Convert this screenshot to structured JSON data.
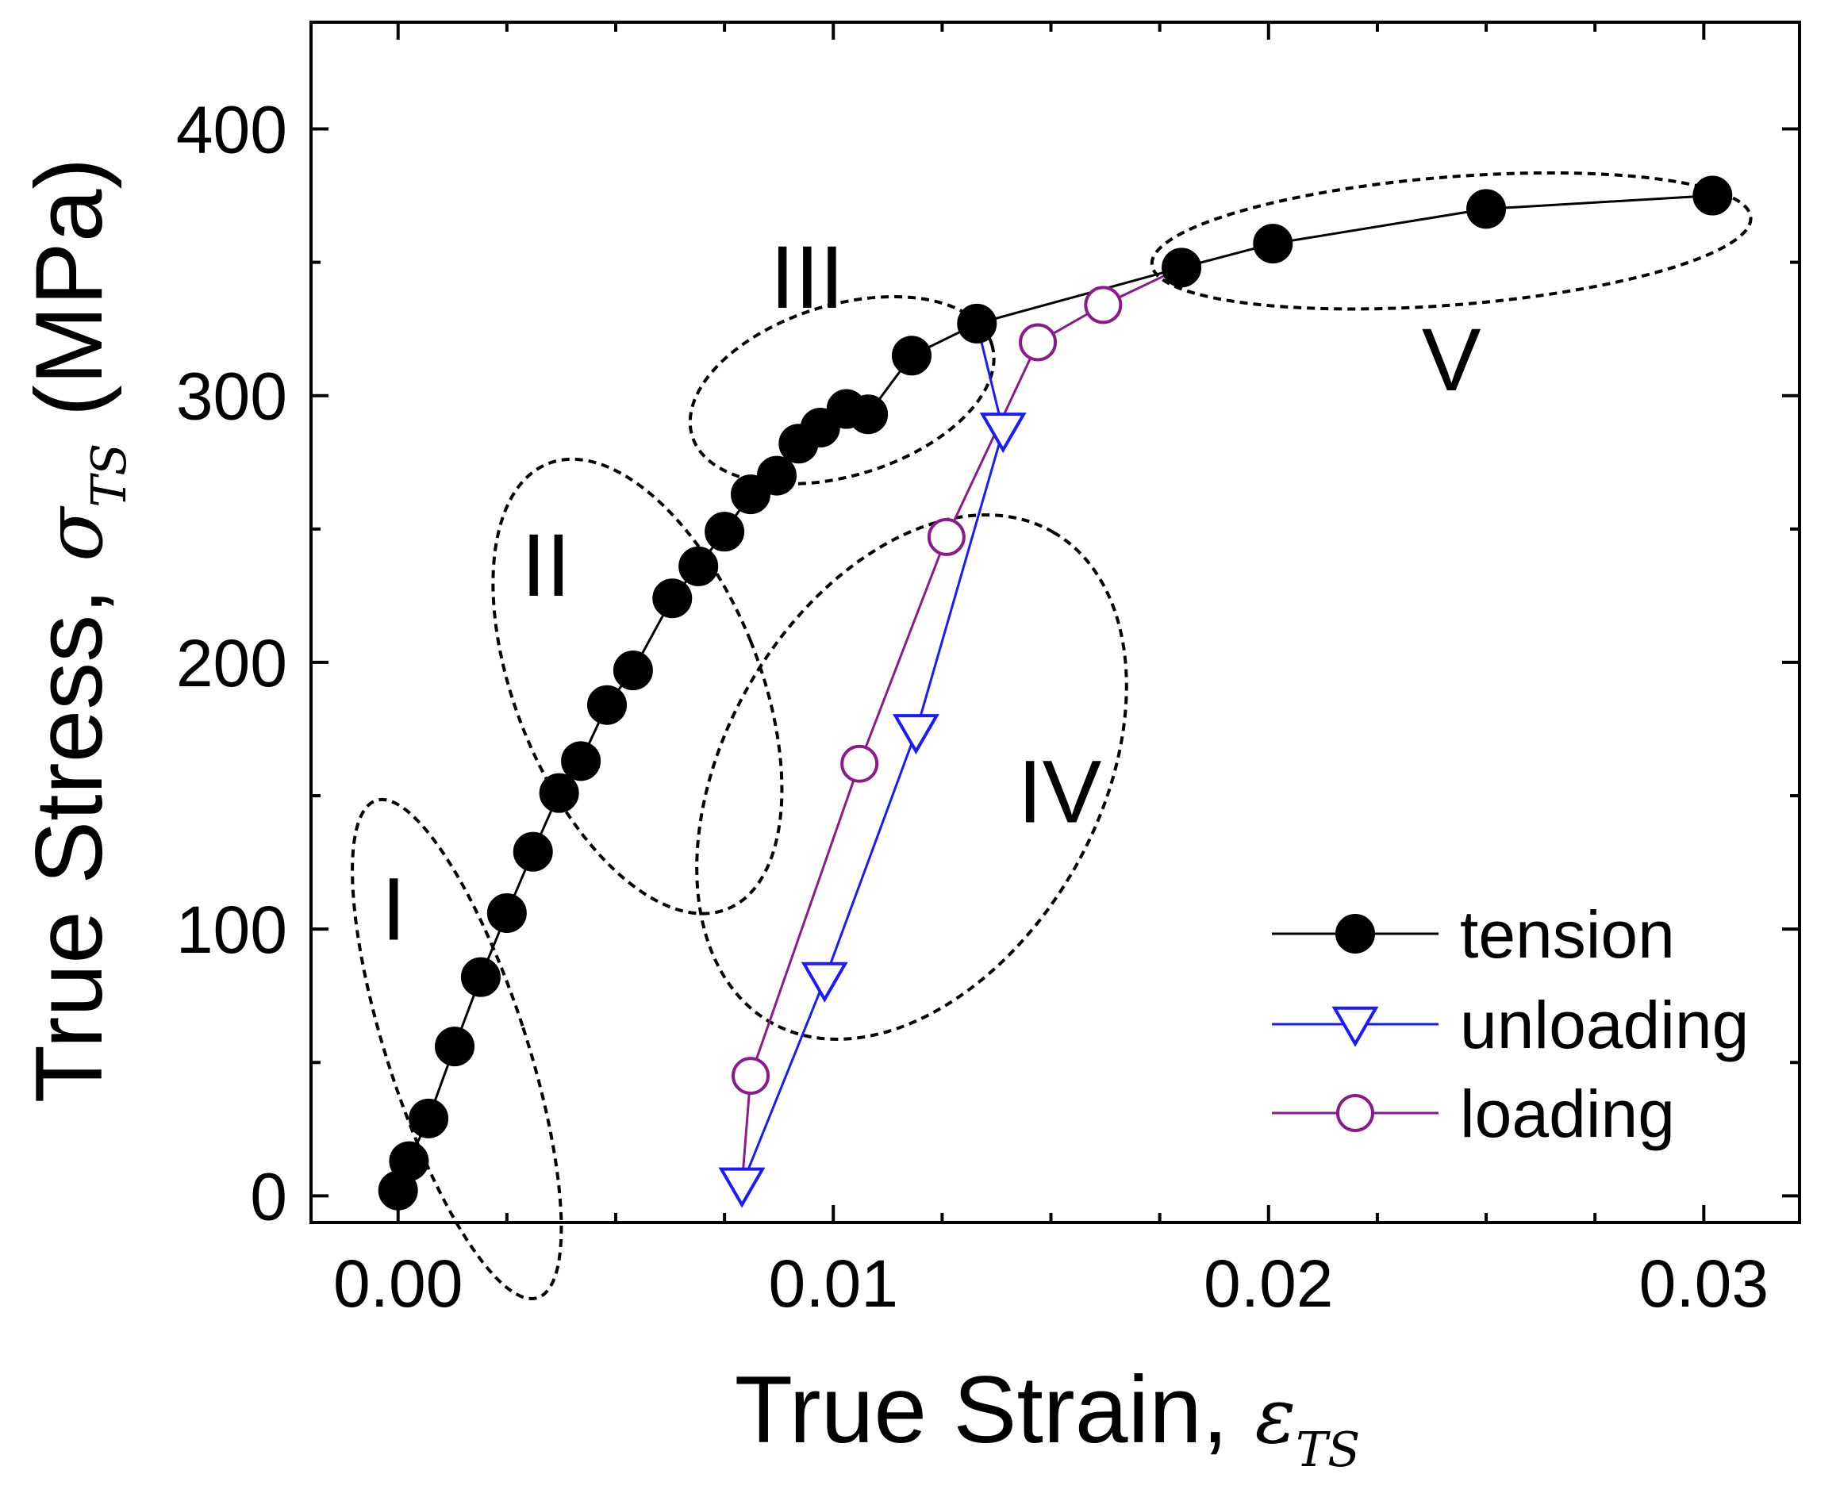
{
  "chart_data": {
    "type": "line",
    "title": "",
    "xlabel": {
      "main": "True Strain, ",
      "symbol": "ε",
      "subscript": "TS"
    },
    "ylabel": {
      "main": "True Stress, ",
      "symbol": "σ",
      "subscript": "TS",
      "unit": " (MPa)"
    },
    "xlim": [
      -0.002,
      0.0322
    ],
    "ylim": [
      -10,
      440
    ],
    "x_ticks": [
      0.0,
      0.01,
      0.02,
      0.03
    ],
    "x_tick_labels": [
      "0.00",
      "0.01",
      "0.02",
      "0.03"
    ],
    "y_ticks": [
      0,
      100,
      200,
      300,
      400
    ],
    "y_tick_labels": [
      "0",
      "100",
      "200",
      "300",
      "400"
    ],
    "legend_position": "bottom-right",
    "series": [
      {
        "name": "tension",
        "color": "#000000",
        "marker": "filled-circle",
        "x": [
          0.0,
          0.00025,
          0.0007,
          0.0013,
          0.0019,
          0.0025,
          0.0031,
          0.0037,
          0.0042,
          0.0048,
          0.0054,
          0.0063,
          0.0069,
          0.0075,
          0.0081,
          0.0087,
          0.0092,
          0.0097,
          0.0103,
          0.0108,
          0.0118,
          0.0133,
          0.018,
          0.0201,
          0.025,
          0.0302
        ],
        "y": [
          2,
          13,
          29,
          56,
          82,
          106,
          129,
          151,
          163,
          184,
          197,
          224,
          236,
          249,
          263,
          270,
          282,
          288,
          295,
          293,
          315,
          327,
          348,
          357,
          370,
          375
        ]
      },
      {
        "name": "unloading",
        "color": "#1a1aff",
        "marker": "open-down-triangle",
        "x": [
          0.0133,
          0.0139,
          0.0119,
          0.0098,
          0.0079
        ],
        "y": [
          327,
          287,
          174,
          81,
          4
        ]
      },
      {
        "name": "loading",
        "color": "#8b1a8b",
        "marker": "open-circle",
        "x": [
          0.0079,
          0.0081,
          0.0106,
          0.0126,
          0.0147,
          0.0162,
          0.018
        ],
        "y": [
          4,
          45,
          162,
          247,
          320,
          334,
          348
        ]
      }
    ],
    "annotations": [
      {
        "text": "I",
        "x": -0.0001,
        "y": 96
      },
      {
        "text": "II",
        "x": 0.0034,
        "y": 225
      },
      {
        "text": "III",
        "x": 0.0094,
        "y": 333
      },
      {
        "text": "IV",
        "x": 0.0152,
        "y": 140
      },
      {
        "text": "V",
        "x": 0.0242,
        "y": 302
      }
    ],
    "regions": [
      {
        "label": "I",
        "cx": 0.00135,
        "cy": 55,
        "rx_data": 0.0016,
        "ry_data": 98,
        "angle": -18
      },
      {
        "label": "II",
        "cx": 0.0055,
        "cy": 191,
        "rx_data": 0.0028,
        "ry_data": 90,
        "angle": -22
      },
      {
        "label": "III",
        "cx": 0.0102,
        "cy": 302,
        "rx_data": 0.0036,
        "ry_data": 32,
        "angle": -17
      },
      {
        "label": "IV",
        "cx": 0.0118,
        "cy": 157,
        "rx_data": 0.0065,
        "ry_data": 70,
        "angle": -60
      },
      {
        "label": "V",
        "cx": 0.0242,
        "cy": 358,
        "rx_data": 0.0069,
        "ry_data": 24,
        "angle": -4.5
      }
    ]
  }
}
